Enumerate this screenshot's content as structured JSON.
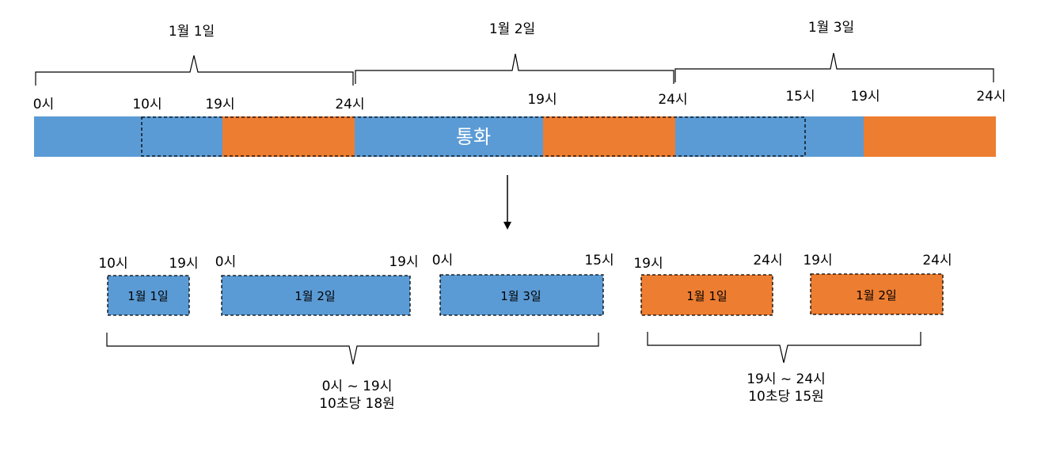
{
  "colors": {
    "blue": "#5b9bd5",
    "orange": "#ed7d31",
    "line": "#000000"
  },
  "top": {
    "day_labels": [
      "1월 1일",
      "1월 2일",
      "1월 3일"
    ],
    "hour_labels": [
      "0시",
      "10시",
      "19시",
      "24시",
      "19시",
      "24시",
      "15시",
      "19시",
      "24시"
    ],
    "call_label": "통화"
  },
  "segments": [
    {
      "name": "seg-1",
      "color": "blue"
    },
    {
      "name": "seg-2",
      "color": "blue"
    },
    {
      "name": "seg-3",
      "color": "orange"
    },
    {
      "name": "seg-4",
      "color": "blue"
    },
    {
      "name": "seg-5",
      "color": "orange"
    },
    {
      "name": "seg-6",
      "color": "blue"
    },
    {
      "name": "seg-7",
      "color": "blue"
    },
    {
      "name": "seg-8",
      "color": "orange"
    }
  ],
  "bottom_boxes": [
    {
      "label": "1월 1일",
      "start": "10시",
      "end": "19시",
      "color": "blue"
    },
    {
      "label": "1월 2일",
      "start": "0시",
      "end": "19시",
      "color": "blue"
    },
    {
      "label": "1월 3일",
      "start": "0시",
      "end": "15시",
      "color": "blue"
    },
    {
      "label": "1월 1일",
      "start": "19시",
      "end": "24시",
      "color": "orange"
    },
    {
      "label": "1월 2일",
      "start": "19시",
      "end": "24시",
      "color": "orange"
    }
  ],
  "rates": [
    {
      "range": "0시 ~ 19시",
      "price": "10초당 18원"
    },
    {
      "range": "19시 ~ 24시",
      "price": "10초당 15원"
    }
  ]
}
